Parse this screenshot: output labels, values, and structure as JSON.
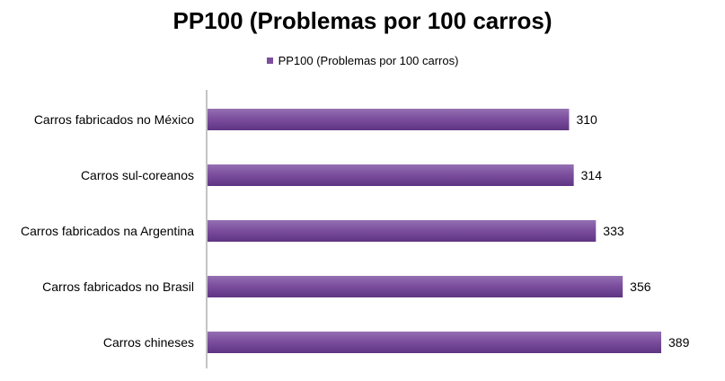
{
  "chart_data": {
    "type": "bar",
    "orientation": "horizontal",
    "title": "PP100 (Problemas por 100 carros)",
    "categories": [
      "Carros fabricados no México",
      "Carros sul-coreanos",
      "Carros fabricados na Argentina",
      "Carros fabricados no Brasil",
      "Carros chineses"
    ],
    "series": [
      {
        "name": "PP100 (Problemas por 100 carros)",
        "values": [
          310,
          314,
          333,
          356,
          389
        ]
      }
    ],
    "legend": "top",
    "data_labels": true,
    "grid": false,
    "xlim": [
      0,
      400
    ],
    "colors": {
      "bar": "#7c4f9e",
      "bar_dark": "#5e3583",
      "bar_light": "#9470b2",
      "axis": "#888888"
    }
  }
}
